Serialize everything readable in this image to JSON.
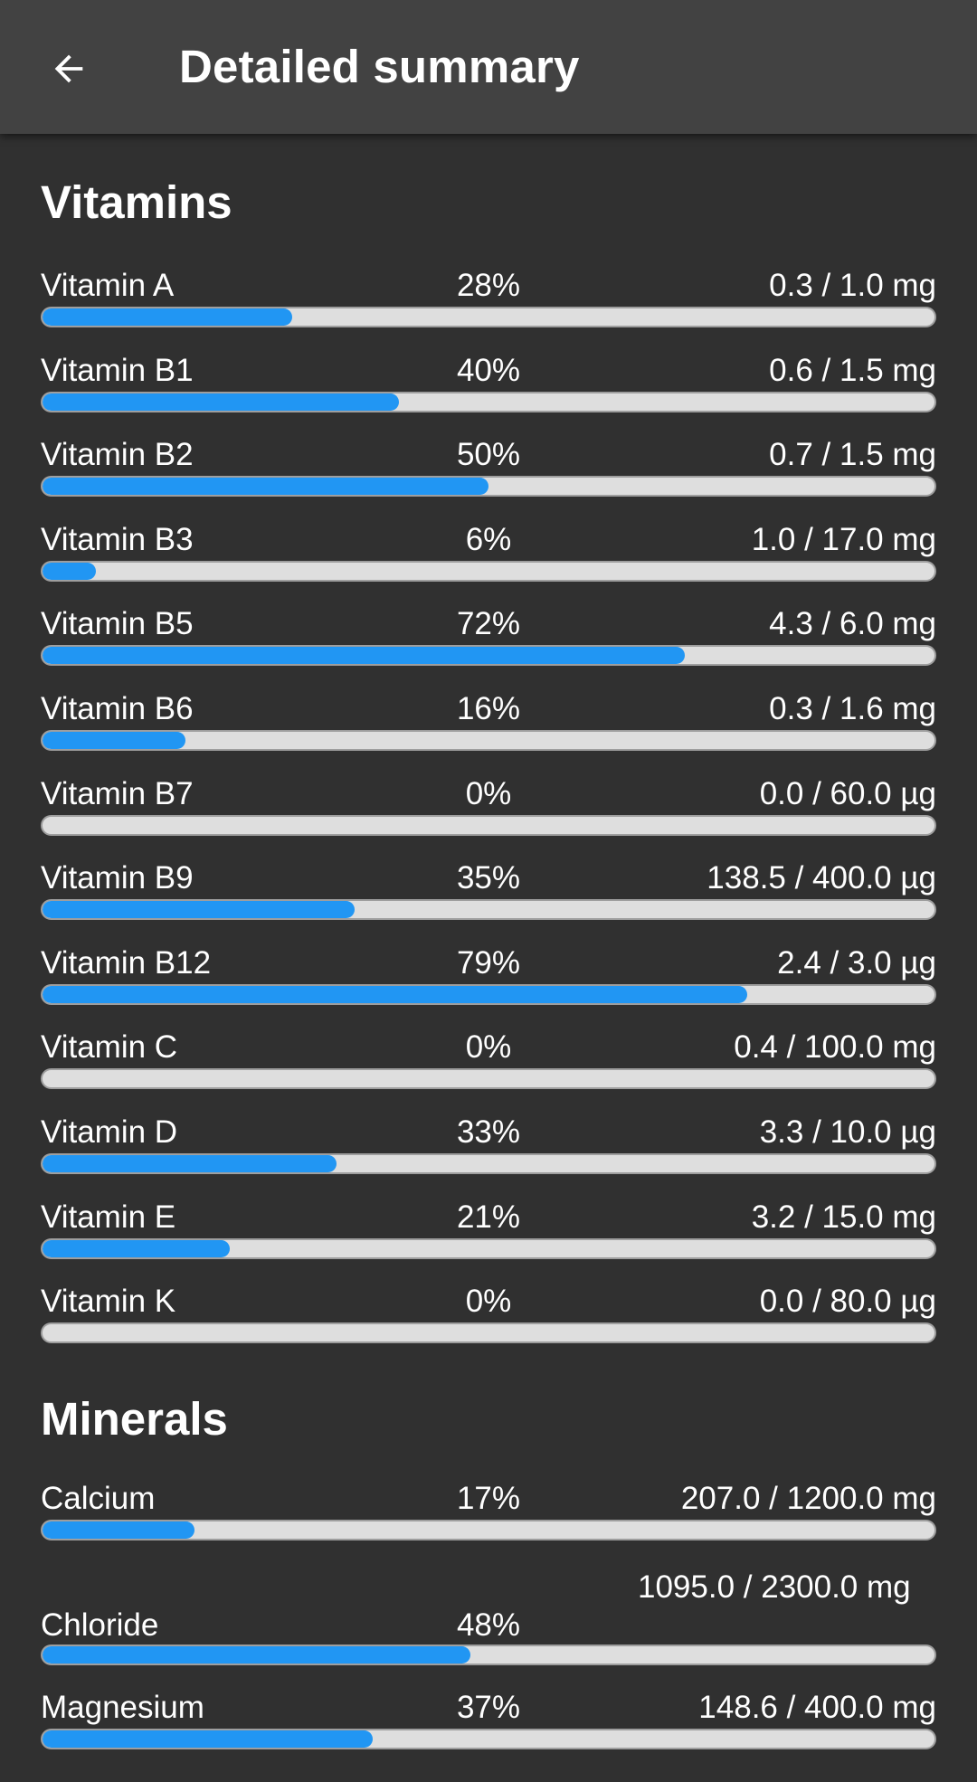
{
  "header": {
    "title": "Detailed summary",
    "back_icon": "arrow-back-icon"
  },
  "colors": {
    "background": "#303030",
    "appbar": "#424242",
    "bar_fill": "#2196f3",
    "bar_track": "#dedede"
  },
  "vitamins": {
    "title": "Vitamins",
    "items": [
      {
        "name": "Vitamin A",
        "percent": "28%",
        "amount": "0.3 / 1.0 mg",
        "progress": 0.28
      },
      {
        "name": "Vitamin B1",
        "percent": "40%",
        "amount": "0.6 / 1.5 mg",
        "progress": 0.4
      },
      {
        "name": "Vitamin B2",
        "percent": "50%",
        "amount": "0.7 / 1.5 mg",
        "progress": 0.5
      },
      {
        "name": "Vitamin B3",
        "percent": "6%",
        "amount": "1.0 / 17.0 mg",
        "progress": 0.06
      },
      {
        "name": "Vitamin B5",
        "percent": "72%",
        "amount": "4.3 / 6.0 mg",
        "progress": 0.72
      },
      {
        "name": "Vitamin B6",
        "percent": "16%",
        "amount": "0.3 / 1.6 mg",
        "progress": 0.16
      },
      {
        "name": "Vitamin B7",
        "percent": "0%",
        "amount": "0.0 / 60.0 µg",
        "progress": 0
      },
      {
        "name": "Vitamin B9",
        "percent": "35%",
        "amount": "138.5 / 400.0 µg",
        "progress": 0.35
      },
      {
        "name": "Vitamin B12",
        "percent": "79%",
        "amount": "2.4 / 3.0 µg",
        "progress": 0.79
      },
      {
        "name": "Vitamin C",
        "percent": "0%",
        "amount": "0.4 / 100.0 mg",
        "progress": 0
      },
      {
        "name": "Vitamin D",
        "percent": "33%",
        "amount": "3.3 / 10.0 µg",
        "progress": 0.33
      },
      {
        "name": "Vitamin E",
        "percent": "21%",
        "amount": "3.2 / 15.0 mg",
        "progress": 0.21
      },
      {
        "name": "Vitamin K",
        "percent": "0%",
        "amount": "0.0 / 80.0 µg",
        "progress": 0
      }
    ]
  },
  "minerals": {
    "title": "Minerals",
    "items": [
      {
        "name": "Calcium",
        "percent": "17%",
        "amount": "207.0 / 1200.0 mg",
        "progress": 0.17
      },
      {
        "name": "Chloride",
        "percent": "48%",
        "amount": "1095.0 / 2300.0 mg",
        "progress": 0.48
      },
      {
        "name": "Magnesium",
        "percent": "37%",
        "amount": "148.6 / 400.0 mg",
        "progress": 0.37
      }
    ]
  }
}
